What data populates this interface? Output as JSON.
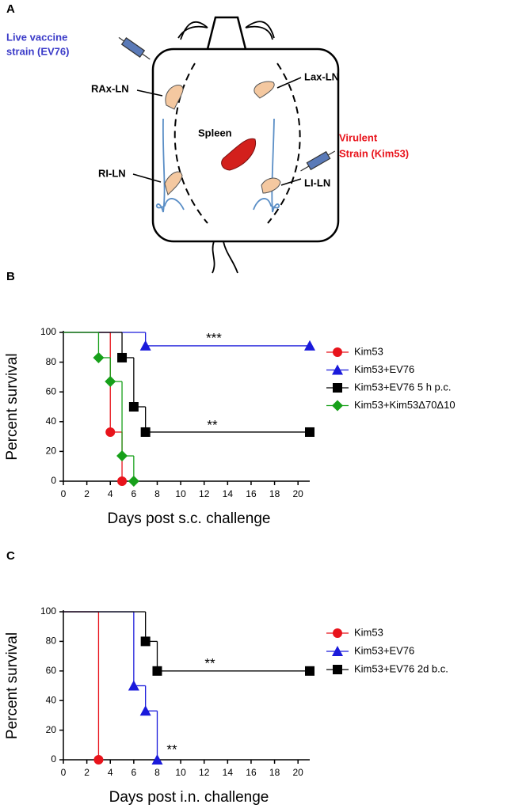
{
  "diagram": {
    "panel_label": "A",
    "vaccine_label": [
      "Live vaccine",
      "strain (EV76)"
    ],
    "virulent_label": [
      "Virulent",
      "Strain (Kim53)"
    ],
    "nodes": [
      "RAx-LN",
      "Lax-LN",
      "Spleen",
      "RI-LN",
      "LI-LN"
    ]
  },
  "chart_data": [
    {
      "type": "line",
      "panel_label": "B",
      "xlabel": "Days post s.c. challenge",
      "ylabel": "Percent survival",
      "xlim": [
        0,
        21
      ],
      "ylim": [
        0,
        100
      ],
      "xticks": [
        0,
        2,
        4,
        6,
        8,
        10,
        12,
        14,
        16,
        18,
        20
      ],
      "yticks": [
        0,
        20,
        40,
        60,
        80,
        100
      ],
      "annotations": [
        "***",
        "**"
      ],
      "series": [
        {
          "name": "Kim53",
          "color": "#e8131b",
          "marker": "circle",
          "x": [
            0,
            4,
            5
          ],
          "values": [
            100,
            33,
            0
          ]
        },
        {
          "name": "Kim53+EV76",
          "color": "#1a1adb",
          "marker": "triangle",
          "x": [
            0,
            7,
            21
          ],
          "values": [
            100,
            91,
            91
          ]
        },
        {
          "name": "Kim53+EV76 5 h p.c.",
          "color": "#000000",
          "marker": "square",
          "x": [
            0,
            5,
            6,
            7,
            21
          ],
          "values": [
            100,
            83,
            50,
            33,
            33
          ]
        },
        {
          "name": "Kim53+Kim53Δ70Δ10",
          "color": "#17a01a",
          "marker": "diamond",
          "x": [
            0,
            3,
            4,
            5,
            6
          ],
          "values": [
            100,
            83,
            67,
            17,
            0
          ]
        }
      ]
    },
    {
      "type": "line",
      "panel_label": "C",
      "xlabel": "Days post i.n. challenge",
      "ylabel": "Percent survival",
      "xlim": [
        0,
        21
      ],
      "ylim": [
        0,
        100
      ],
      "xticks": [
        0,
        2,
        4,
        6,
        8,
        10,
        12,
        14,
        16,
        18,
        20
      ],
      "yticks": [
        0,
        20,
        40,
        60,
        80,
        100
      ],
      "annotations": [
        "**",
        "**"
      ],
      "series": [
        {
          "name": "Kim53",
          "color": "#e8131b",
          "marker": "circle",
          "x": [
            0,
            3
          ],
          "values": [
            100,
            0
          ]
        },
        {
          "name": "Kim53+EV76",
          "color": "#1a1adb",
          "marker": "triangle",
          "x": [
            0,
            6,
            7,
            8
          ],
          "values": [
            100,
            50,
            33,
            0
          ]
        },
        {
          "name": "Kim53+EV76 2d b.c.",
          "color": "#000000",
          "marker": "square",
          "x": [
            0,
            7,
            8,
            21
          ],
          "values": [
            100,
            80,
            60,
            60
          ]
        }
      ]
    }
  ]
}
